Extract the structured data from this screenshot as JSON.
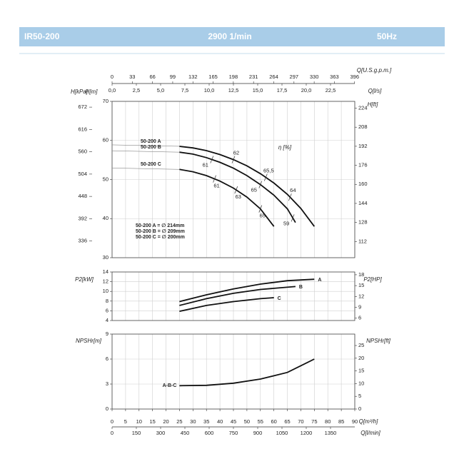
{
  "header": {
    "model": "IR50-200",
    "speed": "2900 1/min",
    "frequency": "50Hz"
  },
  "chart_data": [
    {
      "type": "line",
      "ylabel": "H[m]",
      "ylim": [
        30,
        70
      ],
      "yticks": [
        30,
        40,
        50,
        60,
        70
      ],
      "y_left_outer": {
        "label": "H[kPa]",
        "lim": [
          294.2,
          686.5
        ],
        "ticks": [
          336,
          392,
          448,
          504,
          560,
          616,
          672
        ]
      },
      "y2label": "H[ft]",
      "y2lim": [
        98.4,
        229.7
      ],
      "y2ticks": [
        112,
        128,
        144,
        160,
        176,
        192,
        208,
        224
      ],
      "top_axes": [
        {
          "label": "Q[U.S.g.p.m.]",
          "lim": [
            0,
            396.3
          ],
          "ticks": [
            0,
            33,
            66,
            99,
            132,
            165,
            198,
            231,
            264,
            297,
            330,
            363,
            396
          ]
        },
        {
          "label": "Q[l/s]",
          "lim": [
            0,
            25
          ],
          "ticks": [
            {
              "value": 0,
              "label": "0,0"
            },
            {
              "value": 2.5,
              "label": "2,5"
            },
            {
              "value": 5,
              "label": "5,0"
            },
            {
              "value": 7.5,
              "label": "7,5"
            },
            {
              "value": 10,
              "label": "10,0"
            },
            {
              "value": 12.5,
              "label": "12,5"
            },
            {
              "value": 15,
              "label": "15,0"
            },
            {
              "value": 17.5,
              "label": "17,5"
            },
            {
              "value": 20,
              "label": "20,0"
            },
            {
              "value": 22.5,
              "label": "22,5"
            }
          ]
        }
      ],
      "efficiency_title": "η [%]",
      "legend_lines": [
        "50-200 A = ∅ 214mm",
        "50-200 B = ∅ 209mm",
        "50-200 C = ∅ 200mm"
      ],
      "series": [
        {
          "name": "50-200 A",
          "color": "#111111",
          "x": [
            25,
            30,
            35,
            40,
            45,
            50,
            55,
            60,
            65,
            70,
            75
          ],
          "values": [
            58.5,
            58.1,
            57.4,
            56.4,
            55.1,
            53.5,
            51.5,
            49.1,
            46.2,
            42.6,
            38.0
          ],
          "efficiency": [
            {
              "value": 62,
              "x": 45
            },
            {
              "value": 65.5,
              "label": "65,5",
              "x": 57
            },
            {
              "value": 64,
              "x": 66
            }
          ]
        },
        {
          "name": "50-200 B",
          "color": "#111111",
          "x": [
            25,
            30,
            35,
            40,
            45,
            50,
            55,
            60,
            65,
            68
          ],
          "values": [
            57.0,
            56.5,
            55.6,
            54.4,
            52.9,
            51.0,
            48.7,
            46.0,
            42.5,
            39.0
          ],
          "efficiency": [
            {
              "value": 61,
              "x": 37
            },
            {
              "value": 65,
              "x": 55
            },
            {
              "value": 59,
              "x": 67
            }
          ]
        },
        {
          "name": "50-200 C",
          "color": "#111111",
          "x": [
            25,
            30,
            35,
            40,
            45,
            50,
            55,
            60
          ],
          "values": [
            52.6,
            52.0,
            51.0,
            49.6,
            47.8,
            45.5,
            42.5,
            38.0
          ],
          "efficiency": [
            {
              "value": 61,
              "x": 38
            },
            {
              "value": 63,
              "x": 46
            },
            {
              "value": 65,
              "x": 55
            }
          ]
        }
      ]
    },
    {
      "type": "line",
      "ylabel": "P2[kW]",
      "ylim": [
        4,
        14
      ],
      "yticks": [
        4,
        6,
        8,
        10,
        12,
        14
      ],
      "y2label": "P2[HP]",
      "y2lim": [
        5.36,
        18.77
      ],
      "y2ticks": [
        6,
        9,
        12,
        15,
        18
      ],
      "series": [
        {
          "name": "A",
          "color": "#111111",
          "x": [
            25,
            35,
            45,
            55,
            65,
            75
          ],
          "values": [
            7.9,
            9.3,
            10.5,
            11.5,
            12.2,
            12.5
          ]
        },
        {
          "name": "B",
          "color": "#111111",
          "x": [
            25,
            35,
            45,
            55,
            68
          ],
          "values": [
            7.1,
            8.5,
            9.6,
            10.4,
            11.0
          ]
        },
        {
          "name": "C",
          "color": "#111111",
          "x": [
            25,
            35,
            45,
            55,
            60
          ],
          "values": [
            5.9,
            7.1,
            7.9,
            8.5,
            8.7
          ]
        }
      ]
    },
    {
      "type": "line",
      "ylabel": "NPSHr[m]",
      "ylim": [
        0,
        9
      ],
      "yticks": [
        0,
        3,
        6,
        9
      ],
      "y2label": "NPSHr[ft]",
      "y2lim": [
        0,
        29.5
      ],
      "y2ticks": [
        0,
        5,
        10,
        15,
        20,
        25
      ],
      "xlabel": "Q[m³/h]",
      "xlim": [
        0,
        90
      ],
      "xticks": [
        0,
        5,
        10,
        15,
        20,
        25,
        30,
        35,
        40,
        45,
        50,
        55,
        60,
        65,
        70,
        75,
        80,
        85,
        90
      ],
      "x_bottom_outer": {
        "label": "Q[l/min]",
        "lim": [
          0,
          1500
        ],
        "ticks": [
          0,
          150,
          300,
          450,
          600,
          750,
          900,
          1050,
          1200,
          1350
        ]
      },
      "series": [
        {
          "name": "A-B-C",
          "color": "#111111",
          "x": [
            25,
            35,
            45,
            55,
            65,
            75
          ],
          "values": [
            2.8,
            2.85,
            3.1,
            3.6,
            4.4,
            6.0
          ]
        }
      ]
    }
  ]
}
